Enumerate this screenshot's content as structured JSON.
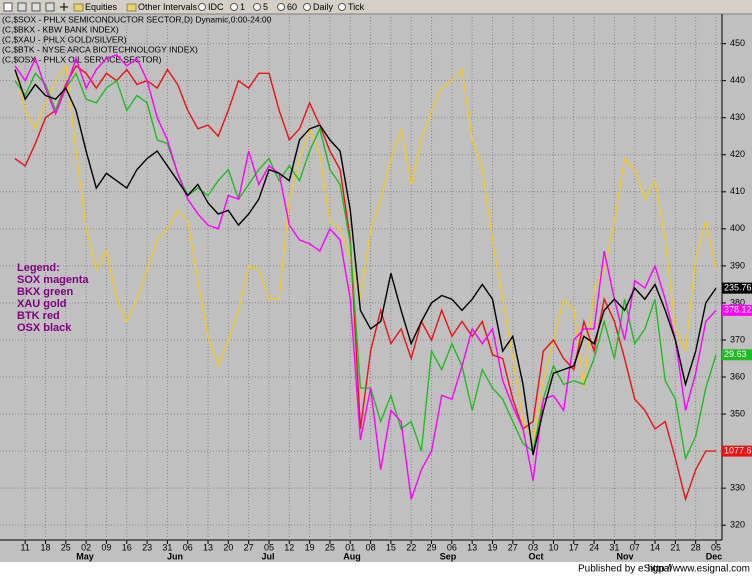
{
  "toolbar": [
    "Equities",
    "Other Intervals",
    "IDC",
    "1",
    "5",
    "60",
    "Daily",
    "Tick"
  ],
  "footer": [
    "Published by eSignal",
    "http://www.esignal.com"
  ],
  "chart_data": {
    "type": "line",
    "header": [
      "(C,$SOX - PHLX SEMICONDUCTOR SECTOR,D) Dynamic,0:00-24:00",
      "(C,$BKX - KBW BANK INDEX)",
      "(C,$XAU - PHLX GOLD/SILVER)",
      "(C,$BTK - NYSE ARCA BIOTECHNOLOGY INDEX)",
      "(C,$OSX - PHLX OIL SERVICE SECTOR)"
    ],
    "legend_title": "Legend:",
    "categories": [
      null,
      "11",
      null,
      "18",
      null,
      "25",
      null,
      "02",
      null,
      "09",
      null,
      "16",
      null,
      "23",
      null,
      "31",
      null,
      "06",
      null,
      "13",
      null,
      "20",
      null,
      "27",
      null,
      "05",
      null,
      "12",
      null,
      "19",
      null,
      "25",
      null,
      "01",
      null,
      "08",
      null,
      "15",
      null,
      "22",
      null,
      "29",
      null,
      "06",
      null,
      "13",
      null,
      "19",
      null,
      "27",
      null,
      "03",
      null,
      "10",
      null,
      "17",
      null,
      "24",
      null,
      "31",
      null,
      "07",
      null,
      "14",
      null,
      "21",
      null,
      "28",
      null,
      "05"
    ],
    "months": [
      "May",
      "Jun",
      "Jul",
      "Aug",
      "Sep",
      "Oct",
      "Nov",
      "Dec"
    ],
    "ylim": [
      316,
      458
    ],
    "yticks": [
      320,
      330,
      340,
      350,
      360,
      370,
      380,
      390,
      400,
      410,
      420,
      430,
      440,
      450
    ],
    "grid": true,
    "series": [
      {
        "name": "SOX magenta",
        "color": "#ff00ff",
        "last_label": "378.12",
        "values": [
          444,
          440,
          446,
          438,
          431,
          438,
          446,
          438,
          443,
          446,
          447,
          444,
          446,
          440,
          430,
          424,
          415,
          408,
          404,
          401,
          400,
          409,
          408,
          421,
          412,
          417,
          415,
          401,
          397,
          396,
          394,
          400,
          397,
          381,
          343,
          357,
          335,
          351,
          348,
          327,
          335,
          340,
          355,
          354,
          363,
          373,
          369,
          373,
          359,
          352,
          346,
          332,
          354,
          355,
          351,
          370,
          373,
          373,
          394,
          381,
          370,
          386,
          384,
          390,
          381,
          370,
          351,
          361,
          375,
          378
        ]
      },
      {
        "name": "BKX green",
        "color": "#22bb22",
        "last_label": "29.63",
        "values": [
          440,
          436,
          442,
          439,
          432,
          438,
          442,
          435,
          434,
          438,
          440,
          432,
          436,
          434,
          424,
          423,
          415,
          409,
          411,
          409,
          413,
          416,
          408,
          412,
          416,
          419,
          413,
          417,
          413,
          421,
          427,
          416,
          412,
          396,
          357,
          357,
          348,
          355,
          346,
          348,
          340,
          367,
          362,
          369,
          363,
          351,
          362,
          357,
          354,
          348,
          342,
          340,
          354,
          363,
          358,
          359,
          358,
          365,
          375,
          365,
          381,
          369,
          373,
          381,
          359,
          354,
          338,
          344,
          357,
          366
        ]
      },
      {
        "name": "XAU gold",
        "color": "#f0c828",
        "values": [
          443,
          432,
          427,
          434,
          440,
          444,
          421,
          400,
          389,
          394,
          381,
          375,
          381,
          389,
          397,
          400,
          405,
          402,
          386,
          371,
          363,
          370,
          378,
          390,
          389,
          381,
          381,
          408,
          419,
          427,
          420,
          402,
          400,
          392,
          381,
          400,
          408,
          419,
          427,
          412,
          424,
          432,
          438,
          440,
          443,
          424,
          416,
          397,
          381,
          365,
          348,
          343,
          359,
          370,
          381,
          378,
          357,
          384,
          389,
          402,
          419,
          416,
          408,
          413,
          397,
          373,
          367,
          392,
          402,
          389
        ]
      },
      {
        "name": "BTK red",
        "color": "#ee1111",
        "last_label": "1077.67",
        "values": [
          419,
          417,
          423,
          430,
          432,
          439,
          444,
          442,
          438,
          442,
          440,
          443,
          439,
          440,
          438,
          443,
          439,
          432,
          427,
          428,
          425,
          432,
          440,
          438,
          442,
          442,
          432,
          424,
          427,
          434,
          428,
          421,
          416,
          397,
          346,
          367,
          378,
          369,
          373,
          365,
          375,
          370,
          378,
          371,
          375,
          371,
          375,
          366,
          365,
          354,
          346,
          348,
          367,
          370,
          365,
          362,
          375,
          367,
          381,
          375,
          365,
          354,
          351,
          346,
          348,
          338,
          327,
          335,
          340,
          340
        ]
      },
      {
        "name": "OSX black",
        "color": "#000000",
        "last_label": "235.76",
        "values": [
          443,
          435,
          439,
          436,
          435,
          438,
          432,
          421,
          411,
          415,
          413,
          411,
          416,
          419,
          421,
          417,
          413,
          409,
          412,
          407,
          404,
          405,
          401,
          404,
          408,
          416,
          415,
          413,
          424,
          427,
          428,
          424,
          421,
          405,
          378,
          373,
          375,
          388,
          378,
          369,
          375,
          380,
          382,
          381,
          378,
          381,
          385,
          381,
          367,
          371,
          358,
          339,
          351,
          361,
          362,
          363,
          371,
          369,
          378,
          381,
          378,
          384,
          381,
          385,
          378,
          370,
          358,
          367,
          380,
          384
        ]
      }
    ]
  }
}
